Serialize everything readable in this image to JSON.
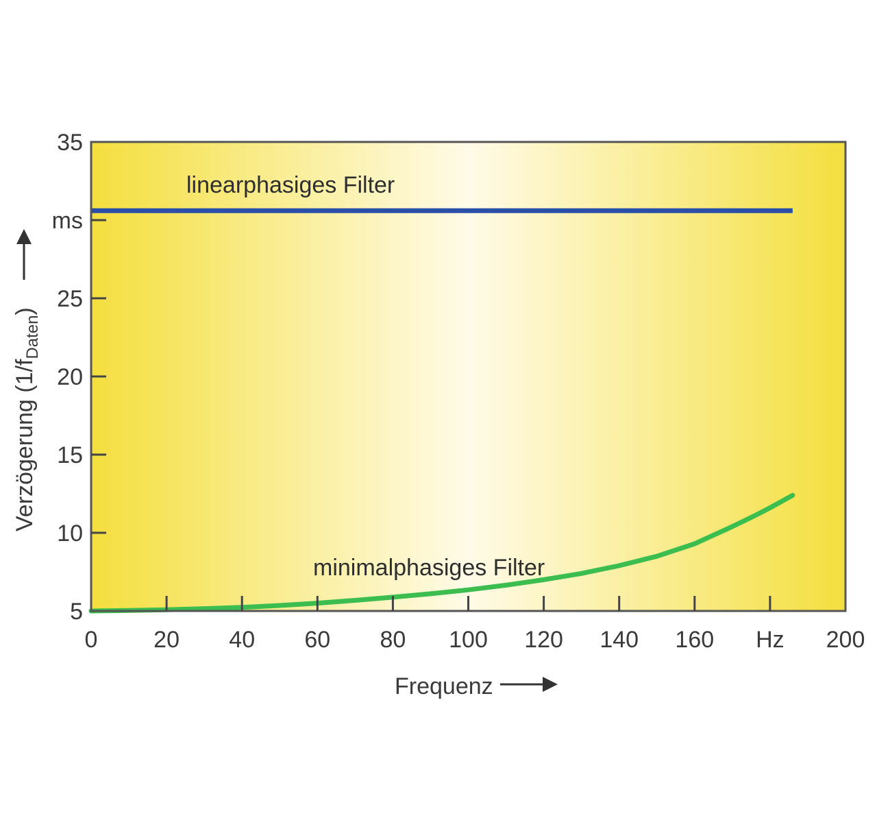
{
  "chart_data": {
    "type": "line",
    "title": "",
    "xlabel": "Frequenz",
    "ylabel": {
      "main": "Verzögerung (1/f",
      "subscript": "Daten",
      "close": ")"
    },
    "xlim": [
      0,
      200
    ],
    "ylim": [
      5,
      35
    ],
    "x_ticks": [
      0,
      20,
      40,
      60,
      80,
      100,
      120,
      140,
      160,
      180,
      200
    ],
    "x_tick_labels": [
      "0",
      "20",
      "40",
      "60",
      "80",
      "100",
      "120",
      "140",
      "160",
      "Hz",
      "200"
    ],
    "y_ticks": [
      5,
      10,
      15,
      20,
      25,
      30,
      35
    ],
    "y_tick_labels": [
      "5",
      "10",
      "15",
      "20",
      "25",
      "ms",
      "35"
    ],
    "grid": false,
    "background": {
      "edge_color": "#f4df3e",
      "center_color": "#fffbe8"
    },
    "series": [
      {
        "name": "linearphasiges Filter",
        "color": "#2a4fa8",
        "x": [
          0,
          20,
          40,
          60,
          80,
          100,
          120,
          140,
          160,
          186
        ],
        "y": [
          30.6,
          30.6,
          30.6,
          30.6,
          30.6,
          30.6,
          30.6,
          30.6,
          30.6,
          30.6
        ]
      },
      {
        "name": "minimalphasiges Filter",
        "color": "#3cbd4f",
        "x": [
          0,
          10,
          20,
          30,
          40,
          50,
          60,
          70,
          80,
          90,
          100,
          110,
          120,
          130,
          140,
          150,
          160,
          170,
          176,
          180,
          183,
          186
        ],
        "y": [
          5.0,
          5.03,
          5.08,
          5.15,
          5.23,
          5.35,
          5.5,
          5.68,
          5.88,
          6.1,
          6.35,
          6.65,
          7.0,
          7.4,
          7.9,
          8.5,
          9.3,
          10.4,
          11.1,
          11.6,
          12.0,
          12.4
        ]
      }
    ]
  }
}
